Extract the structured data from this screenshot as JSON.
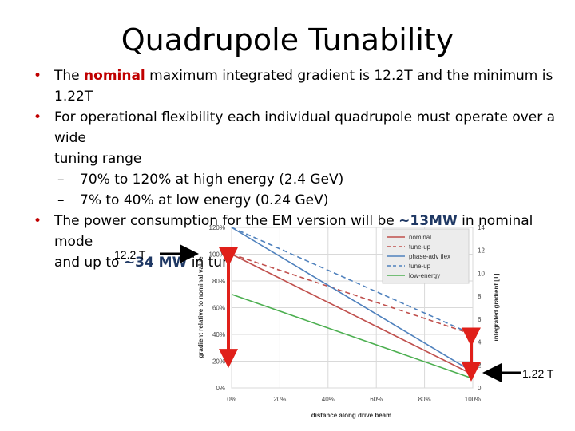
{
  "slide": {
    "title": "Quadrupole Tunability",
    "bullet1": {
      "pre": "The ",
      "emph": "nominal",
      "post": " maximum integrated gradient is 12.2T and the minimum is 1.22T"
    },
    "bullet2": {
      "line1": "For operational flexibility each individual quadrupole must operate over a wide",
      "line2": "tuning range"
    },
    "sub1": "70% to 120% at high energy (2.4 GeV)",
    "sub2": "7% to 40% at low energy (0.24 GeV)",
    "bullet3": {
      "pre": "The power consumption for the EM version will be ",
      "v1": "~13MW",
      "mid": " in nominal mode",
      "line2_pre": "and up to ",
      "v2": "~34 MW",
      "line2_post": " in tune-up mode"
    },
    "dash": "–",
    "callout_top": "12.2 T",
    "callout_bottom": "1.22 T"
  },
  "chart_data": {
    "type": "line",
    "xlabel": "distance along drive beam",
    "ylabel": "gradient relative to nominal value",
    "y2label": "integrated gradient [T]",
    "x_ticks": [
      "0%",
      "20%",
      "40%",
      "60%",
      "80%",
      "100%"
    ],
    "y_ticks": [
      "0%",
      "20%",
      "40%",
      "60%",
      "80%",
      "100%",
      "120%"
    ],
    "y2_ticks": [
      "0",
      "2",
      "4",
      "6",
      "8",
      "10",
      "12",
      "14"
    ],
    "xlim": [
      0,
      100
    ],
    "ylim": [
      0,
      120
    ],
    "y2lim": [
      0,
      14
    ],
    "legend_position": "top-right",
    "series": [
      {
        "name": "nominal",
        "color": "#c0504d",
        "dash": false,
        "x": [
          0,
          100
        ],
        "y": [
          100,
          10
        ]
      },
      {
        "name": "tune-up",
        "color": "#c0504d",
        "dash": true,
        "x": [
          0,
          100
        ],
        "y": [
          100,
          40
        ]
      },
      {
        "name": "phase-adv flex",
        "color": "#4f81bd",
        "dash": false,
        "x": [
          0,
          100
        ],
        "y": [
          120,
          12
        ]
      },
      {
        "name": "tune-up",
        "color": "#4f81bd",
        "dash": true,
        "x": [
          0,
          100
        ],
        "y": [
          120,
          40
        ]
      },
      {
        "name": "low-energy",
        "color": "#4caf50",
        "dash": false,
        "x": [
          0,
          100
        ],
        "y": [
          70,
          7
        ]
      }
    ]
  }
}
